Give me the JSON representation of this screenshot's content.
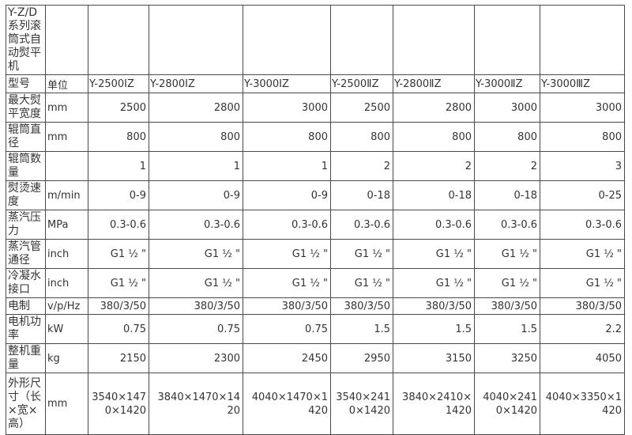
{
  "table": {
    "title": "Y-Z/D系列滚筒式自动熨平机",
    "header": {
      "row_label": "型号",
      "unit_label": "单位",
      "models": [
        "Y-2500ⅠZ",
        "Y-2800ⅠZ",
        "Y-3000ⅠZ",
        "Y-2500ⅡZ",
        "Y-2800ⅡZ",
        "Y-3000ⅡZ",
        "Y-3000ⅢZ"
      ]
    },
    "rows": [
      {
        "label": "最大熨平宽度",
        "unit": "mm",
        "values": [
          "2500",
          "2800",
          "3000",
          "2500",
          "2800",
          "3000",
          "3000"
        ]
      },
      {
        "label": "辊筒直径",
        "unit": "mm",
        "values": [
          "800",
          "800",
          "800",
          "800",
          "800",
          "800",
          "800"
        ]
      },
      {
        "label": "辊筒数量",
        "unit": "",
        "values": [
          "1",
          "1",
          "1",
          "2",
          "2",
          "2",
          "3"
        ]
      },
      {
        "label": "熨烫速度",
        "unit": "m/min",
        "values": [
          "0-9",
          "0-9",
          "0-9",
          "0-18",
          "0-18",
          "0-18",
          "0-25"
        ]
      },
      {
        "label": "蒸汽压力",
        "unit": "MPa",
        "values": [
          "0.3-0.6",
          "0.3-0.6",
          "0.3-0.6",
          "0.3-0.6",
          "0.3-0.6",
          "0.3-0.6",
          "0.3-0.6"
        ]
      },
      {
        "label": "蒸汽管通径",
        "unit": "inch",
        "values": [
          "G1 ½ \"",
          "G1 ½ \"",
          "G1 ½ \"",
          "G1 ½ \"",
          "G1 ½ \"",
          "G1 ½ \"",
          "G1 ½ \""
        ]
      },
      {
        "label": "冷凝水接口",
        "unit": "inch",
        "values": [
          "G1 ½ \"",
          "G1 ½ \"",
          "G1 ½ \"",
          "G1 ½ \"",
          "G1 ½ \"",
          "G1 ½ \"",
          "G1 ½ \""
        ]
      },
      {
        "label": "电制",
        "unit": "v/p/Hz",
        "values": [
          "380/3/50",
          "380/3/50",
          "380/3/50",
          "380/3/50",
          "380/3/50",
          "380/3/50",
          "380/3/50"
        ]
      },
      {
        "label": "电机功率",
        "unit": "kW",
        "values": [
          "0.75",
          "0.75",
          "0.75",
          "1.5",
          "1.5",
          "1.5",
          "2.2"
        ]
      },
      {
        "label": "整机重量",
        "unit": "kg",
        "values": [
          "2150",
          "2300",
          "2450",
          "2950",
          "3150",
          "3250",
          "4050"
        ]
      },
      {
        "label": "外形尺寸（长×宽×高）",
        "unit": "mm",
        "values": [
          "3540×1470×1420",
          "3840×1470×1420",
          "4040×1470×1420",
          "3540×2410×1420",
          "3840×2410×1420",
          "4040×2410×1420",
          "4040×3350×1420"
        ]
      }
    ]
  }
}
